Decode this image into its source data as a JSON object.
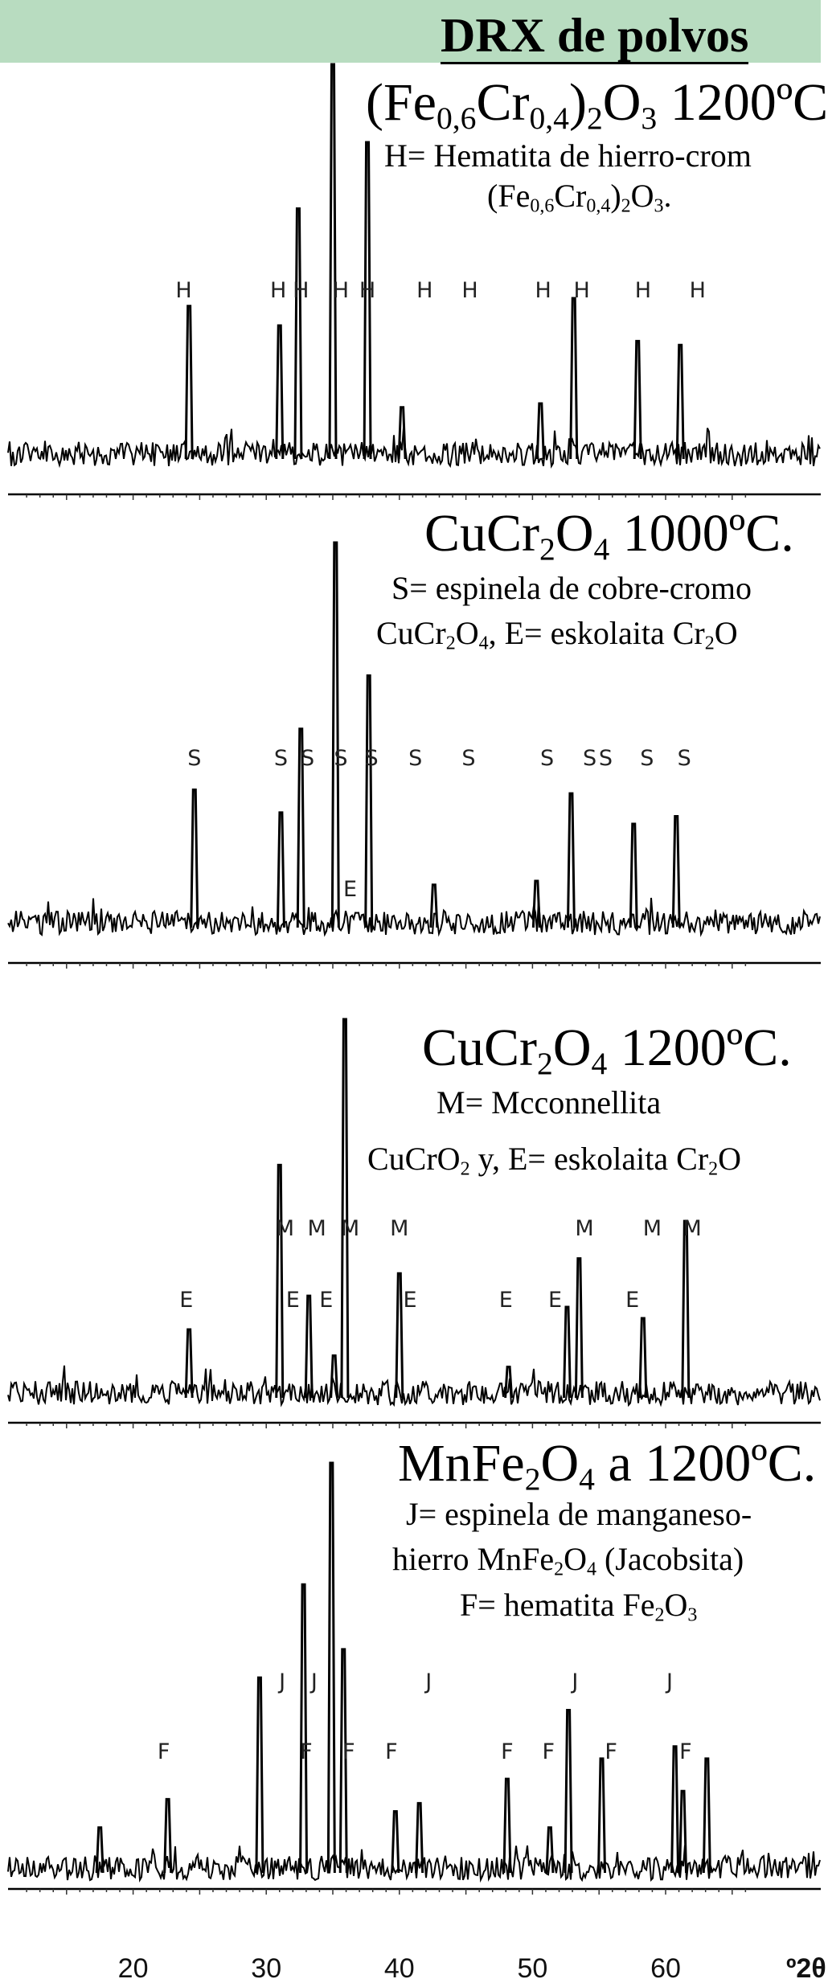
{
  "slide": {
    "title": "DRX de polvos"
  },
  "chart_data": [
    {
      "type": "line",
      "title_formula": [
        [
          "(Fe",
          "n"
        ],
        [
          "0,6",
          "s"
        ],
        [
          "Cr",
          "n"
        ],
        [
          "0,4",
          "s"
        ],
        [
          ")",
          "n"
        ],
        [
          "2",
          "s"
        ],
        [
          "O",
          "n"
        ],
        [
          "3",
          "s"
        ],
        [
          " 1200ºC",
          "n"
        ]
      ],
      "legend_lines": [
        [
          [
            "H= Hematita de hierro-crom",
            "n"
          ]
        ],
        [
          [
            "(Fe",
            "n"
          ],
          [
            "0,6",
            "s"
          ],
          [
            "Cr",
            "n"
          ],
          [
            "0,4",
            "s"
          ],
          [
            ")",
            "n"
          ],
          [
            "2",
            "s"
          ],
          [
            "O",
            "n"
          ],
          [
            "3",
            "s"
          ],
          [
            ".",
            "n"
          ]
        ]
      ],
      "peaks": [
        {
          "x": 24.2,
          "h": 0.38
        },
        {
          "x": 31.0,
          "h": 0.33
        },
        {
          "x": 32.4,
          "h": 0.63
        },
        {
          "x": 35.0,
          "h": 1.0
        },
        {
          "x": 37.6,
          "h": 0.8
        },
        {
          "x": 40.2,
          "h": 0.12
        },
        {
          "x": 50.6,
          "h": 0.13
        },
        {
          "x": 53.1,
          "h": 0.4
        },
        {
          "x": 57.9,
          "h": 0.29
        },
        {
          "x": 61.1,
          "h": 0.28
        }
      ],
      "labels": [
        {
          "text": "H",
          "x": 23.8,
          "row": 1
        },
        {
          "text": "H",
          "x": 30.9,
          "row": 1
        },
        {
          "text": "H",
          "x": 32.6,
          "row": 1
        },
        {
          "text": "H",
          "x": 35.6,
          "row": 1
        },
        {
          "text": "H",
          "x": 37.6,
          "row": 1
        },
        {
          "text": "H",
          "x": 41.9,
          "row": 1
        },
        {
          "text": "H",
          "x": 45.3,
          "row": 1
        },
        {
          "text": "H",
          "x": 50.8,
          "row": 1
        },
        {
          "text": "H",
          "x": 53.7,
          "row": 1
        },
        {
          "text": "H",
          "x": 58.3,
          "row": 1
        },
        {
          "text": "H",
          "x": 62.4,
          "row": 1
        }
      ]
    },
    {
      "type": "line",
      "title_formula": [
        [
          "CuCr",
          "n"
        ],
        [
          "2",
          "s"
        ],
        [
          "O",
          "n"
        ],
        [
          "4",
          "s"
        ],
        [
          " 1000ºC.",
          "n"
        ]
      ],
      "legend_lines": [
        [
          [
            "S= espinela de cobre-cromo",
            "n"
          ]
        ],
        [
          [
            "CuCr",
            "n"
          ],
          [
            "2",
            "s"
          ],
          [
            "O",
            "n"
          ],
          [
            "4",
            "s"
          ],
          [
            ",  E= eskolaita Cr",
            "n"
          ],
          [
            "2",
            "s"
          ],
          [
            "O",
            "n"
          ]
        ]
      ],
      "peaks": [
        {
          "x": 24.6,
          "h": 0.35
        },
        {
          "x": 31.1,
          "h": 0.29
        },
        {
          "x": 32.6,
          "h": 0.51
        },
        {
          "x": 35.2,
          "h": 1.0
        },
        {
          "x": 37.7,
          "h": 0.65
        },
        {
          "x": 42.6,
          "h": 0.1
        },
        {
          "x": 50.3,
          "h": 0.11
        },
        {
          "x": 52.9,
          "h": 0.34
        },
        {
          "x": 57.6,
          "h": 0.26
        },
        {
          "x": 60.8,
          "h": 0.28
        }
      ],
      "labels": [
        {
          "text": "S",
          "x": 24.6,
          "row": 1
        },
        {
          "text": "S",
          "x": 31.1,
          "row": 1
        },
        {
          "text": "S",
          "x": 33.1,
          "row": 1
        },
        {
          "text": "S",
          "x": 35.6,
          "row": 1
        },
        {
          "text": "S",
          "x": 37.9,
          "row": 1
        },
        {
          "text": "S",
          "x": 41.2,
          "row": 1
        },
        {
          "text": "S",
          "x": 45.2,
          "row": 1
        },
        {
          "text": "S",
          "x": 51.1,
          "row": 1
        },
        {
          "text": "S",
          "x": 54.3,
          "row": 1
        },
        {
          "text": "S",
          "x": 55.5,
          "row": 1
        },
        {
          "text": "S",
          "x": 58.6,
          "row": 1
        },
        {
          "text": "S",
          "x": 61.4,
          "row": 1
        },
        {
          "text": "E",
          "x": 36.3,
          "row": 2
        }
      ]
    },
    {
      "type": "line",
      "title_formula": [
        [
          "CuCr",
          "n"
        ],
        [
          "2",
          "s"
        ],
        [
          "O",
          "n"
        ],
        [
          "4",
          "s"
        ],
        [
          " 1200ºC.",
          "n"
        ]
      ],
      "legend_lines": [
        [
          [
            "M= Mcconnellita",
            "n"
          ]
        ],
        [
          [
            "CuCrO",
            "n"
          ],
          [
            "2",
            "s"
          ],
          [
            " y,  E= eskolaita Cr",
            "n"
          ],
          [
            "2",
            "s"
          ],
          [
            "O",
            "n"
          ]
        ]
      ],
      "peaks": [
        {
          "x": 24.2,
          "h": 0.17
        },
        {
          "x": 31.0,
          "h": 0.61
        },
        {
          "x": 33.2,
          "h": 0.26
        },
        {
          "x": 35.1,
          "h": 0.1
        },
        {
          "x": 35.9,
          "h": 1.0
        },
        {
          "x": 40.0,
          "h": 0.32
        },
        {
          "x": 48.2,
          "h": 0.07
        },
        {
          "x": 52.6,
          "h": 0.23
        },
        {
          "x": 53.5,
          "h": 0.36
        },
        {
          "x": 58.3,
          "h": 0.2
        },
        {
          "x": 61.5,
          "h": 0.46
        }
      ],
      "labels": [
        {
          "text": "M",
          "x": 31.4,
          "row": 1
        },
        {
          "text": "M",
          "x": 33.8,
          "row": 1
        },
        {
          "text": "M",
          "x": 36.3,
          "row": 1
        },
        {
          "text": "M",
          "x": 40.0,
          "row": 1
        },
        {
          "text": "M",
          "x": 53.9,
          "row": 1
        },
        {
          "text": "M",
          "x": 59.0,
          "row": 1
        },
        {
          "text": "M",
          "x": 62.0,
          "row": 1
        },
        {
          "text": "E",
          "x": 24.0,
          "row": 2
        },
        {
          "text": "E",
          "x": 32.0,
          "row": 2
        },
        {
          "text": "E",
          "x": 34.5,
          "row": 2
        },
        {
          "text": "E",
          "x": 40.8,
          "row": 2
        },
        {
          "text": "E",
          "x": 48.0,
          "row": 2
        },
        {
          "text": "E",
          "x": 51.7,
          "row": 2
        },
        {
          "text": "E",
          "x": 57.5,
          "row": 2
        }
      ]
    },
    {
      "type": "line",
      "title_formula": [
        [
          "MnFe",
          "n"
        ],
        [
          "2",
          "s"
        ],
        [
          "O",
          "n"
        ],
        [
          "4",
          "s"
        ],
        [
          " a 1200ºC.",
          "n"
        ]
      ],
      "legend_lines": [
        [
          [
            "J= espinela de manganeso-",
            "n"
          ]
        ],
        [
          [
            "hierro MnFe",
            "n"
          ],
          [
            "2",
            "s"
          ],
          [
            "O",
            "n"
          ],
          [
            "4",
            "s"
          ],
          [
            " (Jacobsita)",
            "n"
          ]
        ],
        [
          [
            "F= hematita Fe",
            "n"
          ],
          [
            "2",
            "s"
          ],
          [
            "O",
            "n"
          ],
          [
            "3",
            "s"
          ]
        ]
      ],
      "peaks": [
        {
          "x": 17.5,
          "h": 0.1
        },
        {
          "x": 22.6,
          "h": 0.17
        },
        {
          "x": 29.5,
          "h": 0.47
        },
        {
          "x": 32.8,
          "h": 0.7
        },
        {
          "x": 34.9,
          "h": 1.0
        },
        {
          "x": 35.8,
          "h": 0.54
        },
        {
          "x": 39.7,
          "h": 0.14
        },
        {
          "x": 41.5,
          "h": 0.16
        },
        {
          "x": 48.1,
          "h": 0.22
        },
        {
          "x": 51.3,
          "h": 0.1
        },
        {
          "x": 52.7,
          "h": 0.39
        },
        {
          "x": 55.2,
          "h": 0.27
        },
        {
          "x": 60.7,
          "h": 0.3
        },
        {
          "x": 61.3,
          "h": 0.19
        },
        {
          "x": 63.1,
          "h": 0.27
        }
      ],
      "labels": [
        {
          "text": "J",
          "x": 31.2,
          "row": 1
        },
        {
          "text": "J",
          "x": 33.6,
          "row": 1
        },
        {
          "text": "J",
          "x": 42.2,
          "row": 1
        },
        {
          "text": "J",
          "x": 53.2,
          "row": 1
        },
        {
          "text": "J",
          "x": 60.3,
          "row": 1
        },
        {
          "text": "F",
          "x": 22.3,
          "row": 2
        },
        {
          "text": "F",
          "x": 33.0,
          "row": 2
        },
        {
          "text": "F",
          "x": 36.2,
          "row": 2
        },
        {
          "text": "F",
          "x": 39.4,
          "row": 2
        },
        {
          "text": "F",
          "x": 48.1,
          "row": 2
        },
        {
          "text": "F",
          "x": 51.2,
          "row": 2
        },
        {
          "text": "F",
          "x": 55.9,
          "row": 2
        },
        {
          "text": "F",
          "x": 61.5,
          "row": 2
        }
      ]
    }
  ],
  "x_axis": {
    "ticks": [
      20,
      30,
      40,
      50,
      60
    ],
    "unit": "º2θ"
  }
}
